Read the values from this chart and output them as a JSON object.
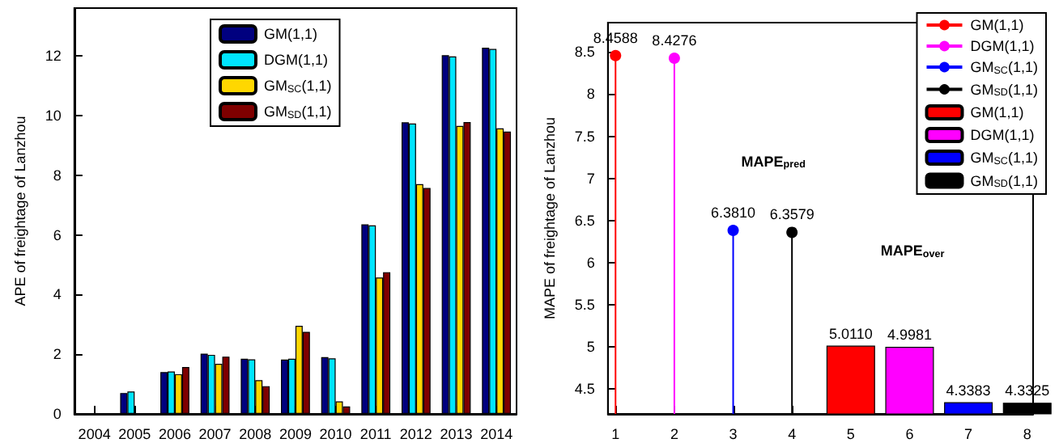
{
  "chart_data": [
    {
      "type": "bar",
      "ylabel": "APE of freightage of Lanzhou",
      "categories": [
        "2004",
        "2005",
        "2006",
        "2007",
        "2008",
        "2009",
        "2010",
        "2011",
        "2012",
        "2013",
        "2014"
      ],
      "series": [
        {
          "name": "GM(1,1)",
          "color": "#00007f",
          "values": [
            null,
            0.7,
            1.4,
            2.02,
            1.85,
            1.82,
            1.9,
            6.35,
            9.77,
            12.02,
            12.27
          ]
        },
        {
          "name": "DGM(1,1)",
          "color": "#00e5ff",
          "values": [
            null,
            0.75,
            1.42,
            1.98,
            1.83,
            1.85,
            1.86,
            6.32,
            9.73,
            11.98,
            12.23
          ]
        },
        {
          "name": "GM$_{SC}$(1,1)",
          "color": "#ffd700",
          "values": [
            null,
            null,
            1.33,
            1.68,
            1.13,
            2.95,
            0.42,
            4.57,
            7.7,
            9.65,
            9.57
          ]
        },
        {
          "name": "GM$_{SD}$(1,1)",
          "color": "#7f0000",
          "values": [
            null,
            null,
            1.57,
            1.92,
            0.93,
            2.75,
            0.25,
            4.75,
            7.57,
            9.78,
            9.46
          ]
        }
      ],
      "ylim": [
        0,
        13.6
      ],
      "yticks": [
        0,
        2,
        4,
        6,
        8,
        10,
        12
      ],
      "legend": "top",
      "grid": false
    },
    {
      "type": "bar",
      "ylabel": "MAPE of freightage of Lanzhou",
      "annotations": [
        "MAPE$_{pred}$",
        "MAPE$_{over}$"
      ],
      "series": [
        {
          "type": "lollipop",
          "name": "GM(1,1)",
          "color": "#ff0000",
          "x": [
            1
          ],
          "values": [
            8.4588
          ],
          "value_labels": [
            "8.4588"
          ],
          "marker": "circle"
        },
        {
          "type": "lollipop",
          "name": "DGM(1,1)",
          "color": "#ff00ff",
          "x": [
            2
          ],
          "values": [
            8.4276
          ],
          "value_labels": [
            "8.4276"
          ],
          "marker": "circle"
        },
        {
          "type": "lollipop",
          "name": "GM$_{SC}$(1,1)",
          "color": "#0000ff",
          "x": [
            3
          ],
          "values": [
            6.381
          ],
          "value_labels": [
            "6.3810"
          ],
          "marker": "circle"
        },
        {
          "type": "lollipop",
          "name": "GM$_{SD}$(1,1)",
          "color": "#000000",
          "x": [
            4
          ],
          "values": [
            6.3579
          ],
          "value_labels": [
            "6.3579"
          ],
          "marker": "circle"
        },
        {
          "name": "GM(1,1)",
          "color": "#ff0000",
          "x": [
            5
          ],
          "values": [
            5.011
          ],
          "value_labels": [
            "5.0110"
          ]
        },
        {
          "name": "DGM(1,1)",
          "color": "#ff00ff",
          "x": [
            6
          ],
          "values": [
            4.9981
          ],
          "value_labels": [
            "4.9981"
          ]
        },
        {
          "name": "GM$_{SC}$(1,1)",
          "color": "#0000ff",
          "x": [
            7
          ],
          "values": [
            4.3383
          ],
          "value_labels": [
            "4.3383"
          ]
        },
        {
          "name": "GM$_{SD}$(1,1)",
          "color": "#000000",
          "x": [
            8
          ],
          "values": [
            4.3325
          ],
          "value_labels": [
            "4.3325"
          ]
        }
      ],
      "xlim": [
        0.87,
        8.1
      ],
      "xticks": [
        1,
        2,
        3,
        4,
        5,
        6,
        7,
        8
      ],
      "ylim": [
        4.2,
        8.85
      ],
      "yticks": [
        4.5,
        5,
        5.5,
        6,
        6.5,
        7,
        7.5,
        8,
        8.5
      ],
      "legend": "top right",
      "grid": false
    }
  ]
}
